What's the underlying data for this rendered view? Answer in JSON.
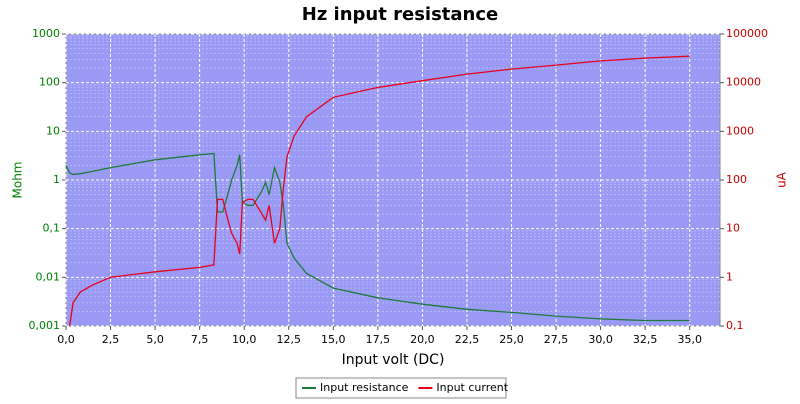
{
  "chart_data": {
    "type": "line",
    "title": "Hz input resistance",
    "x_label": "Input volt (DC)",
    "y_label": "Mohm",
    "y2_label": "uA",
    "x": [
      0,
      0.2,
      0.4,
      0.8,
      1.5,
      2.5,
      5,
      7.5,
      8.3,
      8.5,
      8.8,
      9,
      9.3,
      9.6,
      9.75,
      9.9,
      10.2,
      10.5,
      11,
      11.2,
      11.4,
      11.7,
      12,
      12.2,
      12.4,
      12.8,
      13.5,
      15,
      17.5,
      20,
      22.5,
      25,
      27.5,
      30,
      32.5,
      35
    ],
    "series": [
      {
        "name": "Input resistance",
        "color": "#1e7a3a",
        "axis": "y",
        "values": [
          2,
          1.4,
          1.3,
          1.35,
          1.5,
          1.8,
          2.6,
          3.3,
          3.5,
          0.22,
          0.22,
          0.4,
          1,
          2,
          3.3,
          0.35,
          0.3,
          0.3,
          0.6,
          0.9,
          0.5,
          1.8,
          0.9,
          0.3,
          0.05,
          0.025,
          0.012,
          0.006,
          0.0038,
          0.0028,
          0.0022,
          0.0019,
          0.0016,
          0.0014,
          0.0013,
          0.0013
        ]
      },
      {
        "name": "Input current",
        "color": "#e8001c",
        "axis": "y2",
        "values": [
          null,
          0.1,
          0.3,
          0.5,
          0.7,
          1,
          1.3,
          1.6,
          1.8,
          40,
          40,
          20,
          8,
          5,
          3,
          35,
          40,
          40,
          20,
          15,
          30,
          5,
          10,
          70,
          300,
          800,
          2000,
          5000,
          8000,
          11000,
          15000,
          19000,
          23000,
          28000,
          32000,
          35000
        ]
      }
    ],
    "xlim": [
      0,
      36.7
    ],
    "xticks": [
      {
        "value": 0,
        "label": "0,0"
      },
      {
        "value": 2.5,
        "label": "2,5"
      },
      {
        "value": 5,
        "label": "5,0"
      },
      {
        "value": 7.5,
        "label": "7,5"
      },
      {
        "value": 10,
        "label": "10,0"
      },
      {
        "value": 12.5,
        "label": "12,5"
      },
      {
        "value": 15,
        "label": "15,0"
      },
      {
        "value": 17.5,
        "label": "17,5"
      },
      {
        "value": 20,
        "label": "20,0"
      },
      {
        "value": 22.5,
        "label": "22,5"
      },
      {
        "value": 25,
        "label": "25,0"
      },
      {
        "value": 27.5,
        "label": "27,5"
      },
      {
        "value": 30,
        "label": "30,0"
      },
      {
        "value": 32.5,
        "label": "32,5"
      },
      {
        "value": 35,
        "label": "35,0"
      }
    ],
    "ylim": [
      0.001,
      1000
    ],
    "yticks": [
      {
        "value": 0.001,
        "label": "0,001"
      },
      {
        "value": 0.01,
        "label": "0,01"
      },
      {
        "value": 0.1,
        "label": "0,1"
      },
      1,
      10,
      100,
      1000
    ],
    "y2lim": [
      0.1,
      100000
    ],
    "y2ticks": [
      {
        "value": 0.1,
        "label": "0,1"
      },
      1,
      10,
      100,
      1000,
      10000,
      100000
    ],
    "log_scale": true,
    "grid": true,
    "legend": "bottom"
  }
}
